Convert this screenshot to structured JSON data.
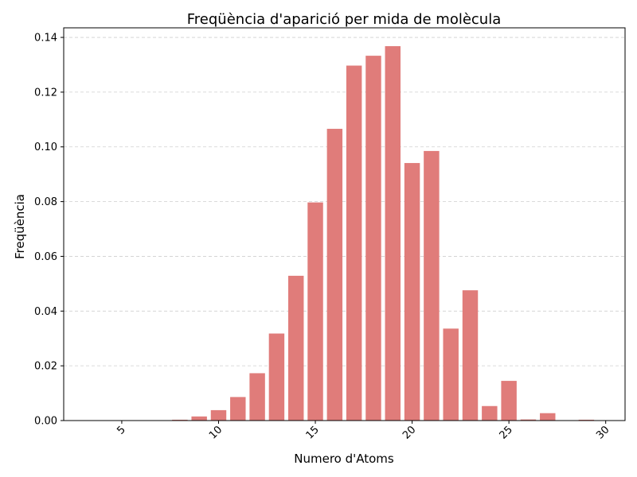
{
  "chart_data": {
    "type": "bar",
    "title": "Freqüència d'aparició per mida de molècula",
    "xlabel": "Numero d'Atoms",
    "ylabel": "Freqüència",
    "xlim": [
      2,
      31
    ],
    "ylim": [
      0,
      0.1435
    ],
    "xticks": [
      5,
      10,
      15,
      20,
      25,
      30
    ],
    "xtick_labels": [
      "5",
      "10",
      "15",
      "20",
      "25",
      "30"
    ],
    "yticks": [
      0,
      0.02,
      0.04,
      0.06,
      0.08,
      0.1,
      0.12,
      0.14
    ],
    "ytick_labels": [
      "0.00",
      "0.02",
      "0.04",
      "0.06",
      "0.08",
      "0.10",
      "0.12",
      "0.14"
    ],
    "grid": "y-dashed",
    "bar_color": "#e07c7a",
    "x": [
      3,
      4,
      5,
      6,
      7,
      8,
      9,
      10,
      11,
      12,
      13,
      14,
      15,
      16,
      17,
      18,
      19,
      20,
      21,
      22,
      23,
      24,
      25,
      26,
      27,
      28,
      29
    ],
    "values": [
      0.0,
      0.0,
      0.0,
      0.0,
      0.0,
      0.0003,
      0.0015,
      0.0038,
      0.0086,
      0.0173,
      0.0318,
      0.0529,
      0.0797,
      0.1066,
      0.1297,
      0.1333,
      0.1368,
      0.0941,
      0.0985,
      0.0336,
      0.0476,
      0.0053,
      0.0145,
      0.0004,
      0.0027,
      0.0001,
      0.0003
    ]
  }
}
